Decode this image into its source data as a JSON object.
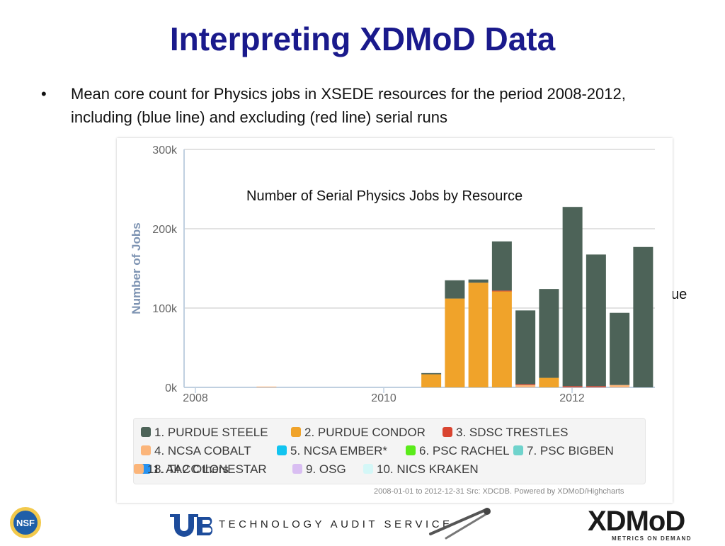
{
  "slide": {
    "title": "Interpreting XDMoD Data",
    "bullet_symbol": "•",
    "bullet_text": "Mean core count for Physics jobs in XSEDE resources for the period 2008-2012, including (blue line) and excluding (red line) serial runs",
    "stray_text": "ue",
    "overlay_title": "Number of Serial Physics Jobs by Resource",
    "credits": "2008-01-01 to 2012-12-31 Src: XDCDB. Powered by XDMoD/Highcharts",
    "footer_text": "TECHNOLOGY AUDIT SERVICE",
    "xdmod_logo_text": "XDMoD",
    "xdmod_logo_sub": "METRICS ON DEMAND",
    "nsf_logo_text": "NSF"
  },
  "chart_data": {
    "type": "bar",
    "stacked": true,
    "ylabel": "Number of Jobs",
    "yticks": [
      "0k",
      "100k",
      "200k",
      "300k"
    ],
    "ylim": [
      0,
      300000
    ],
    "xticks": [
      {
        "label": "2008",
        "year": 2008
      },
      {
        "label": "2010",
        "year": 2010
      },
      {
        "label": "2012",
        "year": 2012
      }
    ],
    "bars": [
      {
        "period": "2008-Q4",
        "PURDUE STEELE": 0,
        "PURDUE CONDOR": 0,
        "NCSA COBALT": 1000,
        "SDSC TRESTLES": 0
      },
      {
        "period": "2010-Q3",
        "PURDUE STEELE": 1500,
        "PURDUE CONDOR": 16500,
        "NCSA COBALT": 0,
        "SDSC TRESTLES": 0
      },
      {
        "period": "2010-Q4",
        "PURDUE STEELE": 23000,
        "PURDUE CONDOR": 112000,
        "NCSA COBALT": 0,
        "SDSC TRESTLES": 0
      },
      {
        "period": "2011-Q1",
        "PURDUE STEELE": 4000,
        "PURDUE CONDOR": 132000,
        "NCSA COBALT": 0,
        "SDSC TRESTLES": 0
      },
      {
        "period": "2011-Q2",
        "PURDUE STEELE": 62000,
        "PURDUE CONDOR": 121000,
        "NCSA COBALT": 0,
        "SDSC TRESTLES": 1000
      },
      {
        "period": "2011-Q3",
        "PURDUE STEELE": 93000,
        "PURDUE CONDOR": 0,
        "NCSA COBALT": 3000,
        "SDSC TRESTLES": 1000
      },
      {
        "period": "2011-Q4",
        "PURDUE STEELE": 112000,
        "PURDUE CONDOR": 12000,
        "NCSA COBALT": 0,
        "SDSC TRESTLES": 0
      },
      {
        "period": "2012-Q1",
        "PURDUE STEELE": 226000,
        "PURDUE CONDOR": 0,
        "NCSA COBALT": 0,
        "SDSC TRESTLES": 1500
      },
      {
        "period": "2012-Q2",
        "PURDUE STEELE": 166000,
        "PURDUE CONDOR": 0,
        "NCSA COBALT": 0,
        "SDSC TRESTLES": 1500
      },
      {
        "period": "2012-Q3",
        "PURDUE STEELE": 91000,
        "PURDUE CONDOR": 0,
        "NCSA COBALT": 3000,
        "SDSC TRESTLES": 0
      },
      {
        "period": "2012-Q4",
        "PURDUE STEELE": 177000,
        "PURDUE CONDOR": 0,
        "NCSA COBALT": 0,
        "SDSC TRESTLES": 0
      }
    ],
    "stack_order": [
      "PURDUE CONDOR",
      "NCSA COBALT",
      "SDSC TRESTLES",
      "PURDUE STEELE"
    ],
    "legend": [
      {
        "label": "1. PURDUE STEELE",
        "key": "PURDUE STEELE",
        "color": "#4d6358"
      },
      {
        "label": "2. PURDUE CONDOR",
        "key": "PURDUE CONDOR",
        "color": "#f0a32a"
      },
      {
        "label": "3. SDSC TRESTLES",
        "key": "SDSC TRESTLES",
        "color": "#d94430"
      },
      {
        "label": "4. NCSA COBALT",
        "key": "NCSA COBALT",
        "color": "#fbb57a"
      },
      {
        "label": "5. NCSA EMBER*",
        "key": "NCSA EMBER",
        "color": "#12c4f0"
      },
      {
        "label": "6. PSC RACHEL",
        "key": "PSC RACHEL",
        "color": "#5aeb1a"
      },
      {
        "label": "7. PSC BIGBEN",
        "key": "PSC BIGBEN",
        "color": "#6fd3cc"
      },
      {
        "label": "8. TACC LONESTAR",
        "key": "TACC LONESTAR",
        "color": "#2792f0"
      },
      {
        "label": "9. OSG",
        "key": "OSG",
        "color": "#d9bef2"
      },
      {
        "label": "10. NICS KRAKEN",
        "key": "NICS KRAKEN",
        "color": "#d4f7f7"
      },
      {
        "label": "11. All 2 Others",
        "key": "All 2 Others",
        "color": "#fbb57a"
      }
    ],
    "legend_position": "bottom",
    "grid": true
  }
}
